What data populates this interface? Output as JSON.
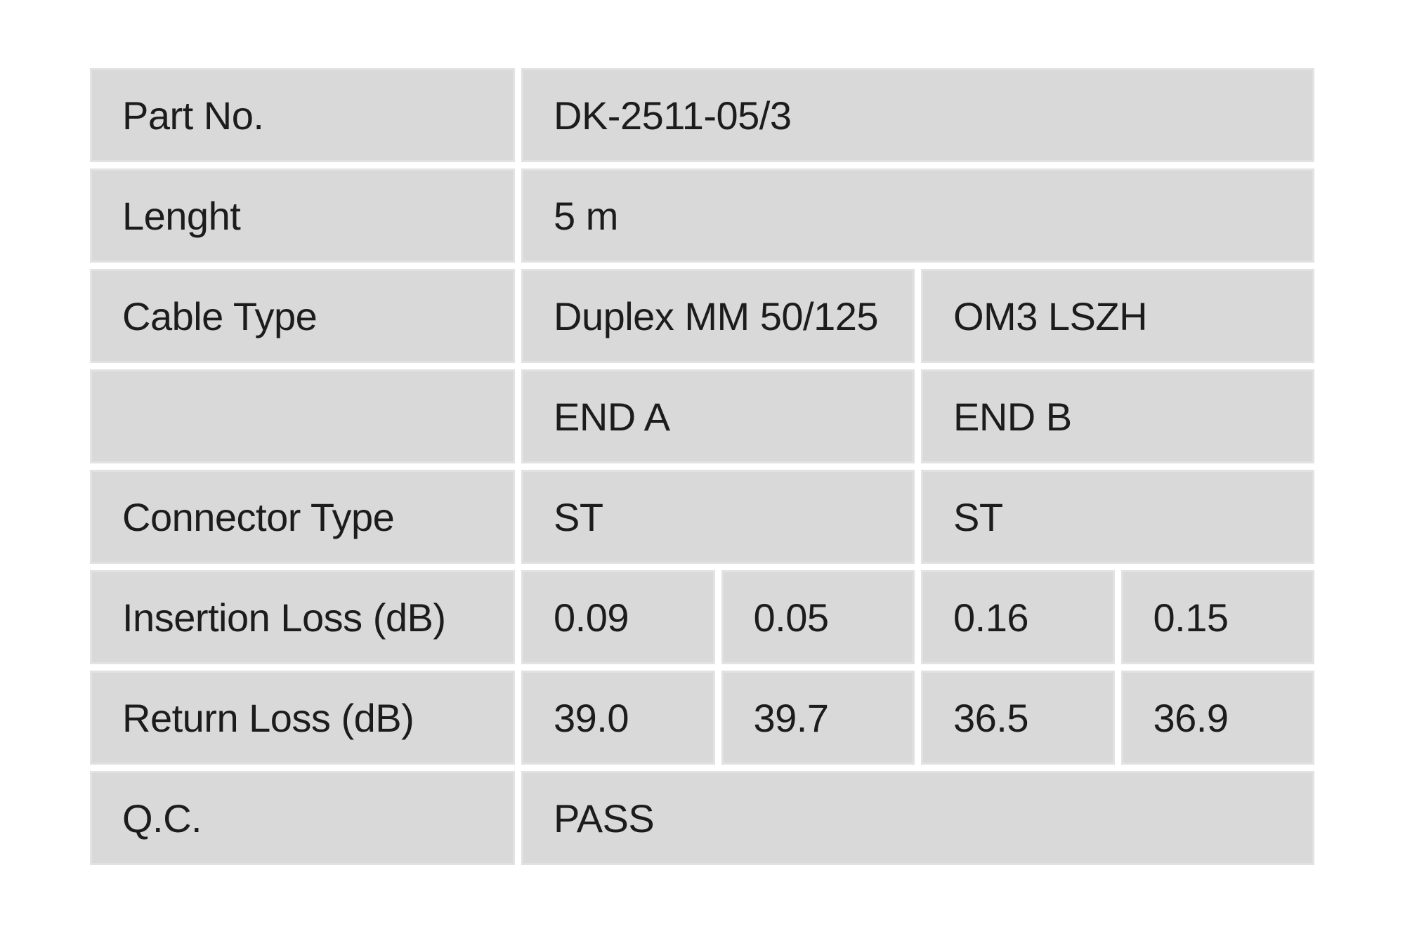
{
  "colors": {
    "page_bg": "#ffffff",
    "cell_bg": "#d9d9d9",
    "text": "#1c1c1c"
  },
  "table": {
    "rows": [
      {
        "key": "part-no",
        "label": "Part No.",
        "values": [
          {
            "text": "DK-2511-05/3",
            "span": 4
          }
        ]
      },
      {
        "key": "length",
        "label": "Lenght",
        "values": [
          {
            "text": "5 m",
            "span": 4
          }
        ]
      },
      {
        "key": "cable-type",
        "label": "Cable Type",
        "values": [
          {
            "text": "Duplex MM 50/125",
            "span": 2
          },
          {
            "text": "OM3 LSZH",
            "span": 2
          }
        ]
      },
      {
        "key": "end-header",
        "label": "",
        "values": [
          {
            "text": "END A",
            "span": 2
          },
          {
            "text": "END B",
            "span": 2
          }
        ]
      },
      {
        "key": "connector-type",
        "label": "Connector Type",
        "values": [
          {
            "text": "ST",
            "span": 2
          },
          {
            "text": "ST",
            "span": 2
          }
        ]
      },
      {
        "key": "insertion-loss",
        "label": "Insertion Loss (dB)",
        "values": [
          {
            "text": "0.09",
            "span": 1
          },
          {
            "text": "0.05",
            "span": 1
          },
          {
            "text": "0.16",
            "span": 1
          },
          {
            "text": "0.15",
            "span": 1
          }
        ]
      },
      {
        "key": "return-loss",
        "label": "Return Loss (dB)",
        "values": [
          {
            "text": "39.0",
            "span": 1
          },
          {
            "text": "39.7",
            "span": 1
          },
          {
            "text": "36.5",
            "span": 1
          },
          {
            "text": "36.9",
            "span": 1
          }
        ]
      },
      {
        "key": "qc",
        "label": "Q.C.",
        "values": [
          {
            "text": "PASS",
            "span": 4
          }
        ]
      }
    ]
  }
}
